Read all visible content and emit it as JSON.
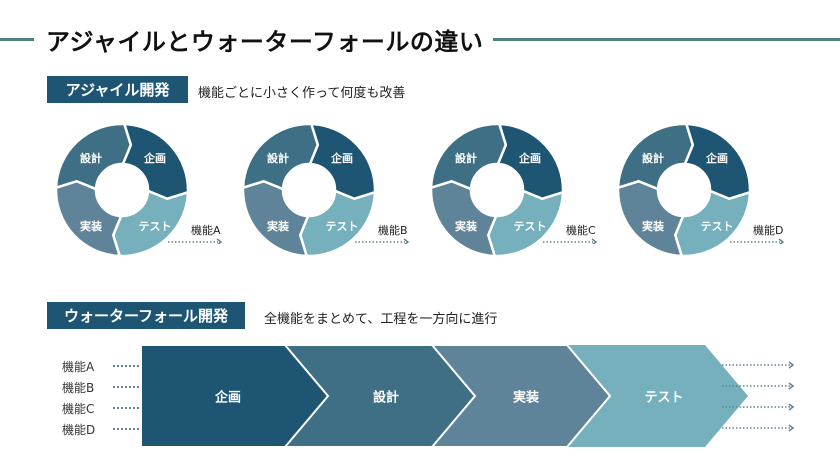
{
  "header": {
    "title": "アジャイルとウォーターフォールの違い"
  },
  "colors": {
    "planning": "#1d5572",
    "design": "#3e6f84",
    "implementation": "#5f8499",
    "test": "#75b0bc",
    "title_line": "#4f7f85",
    "badge_bg": "#1d5572"
  },
  "agile": {
    "badge": "アジャイル開発",
    "description": "機能ごとに小さく作って何度も改善",
    "cycles": [
      {
        "feature": "機能A",
        "phases": {
          "planning": "企画",
          "design": "設計",
          "implementation": "実装",
          "test": "テスト"
        }
      },
      {
        "feature": "機能B",
        "phases": {
          "planning": "企画",
          "design": "設計",
          "implementation": "実装",
          "test": "テスト"
        }
      },
      {
        "feature": "機能C",
        "phases": {
          "planning": "企画",
          "design": "設計",
          "implementation": "実装",
          "test": "テスト"
        }
      },
      {
        "feature": "機能D",
        "phases": {
          "planning": "企画",
          "design": "設計",
          "implementation": "実装",
          "test": "テスト"
        }
      }
    ]
  },
  "waterfall": {
    "badge": "ウォーターフォール開発",
    "description": "全機能をまとめて、工程を一方向に進行",
    "features": [
      "機能A",
      "機能B",
      "機能C",
      "機能D"
    ],
    "phases": [
      "企画",
      "設計",
      "実装",
      "テスト"
    ]
  }
}
